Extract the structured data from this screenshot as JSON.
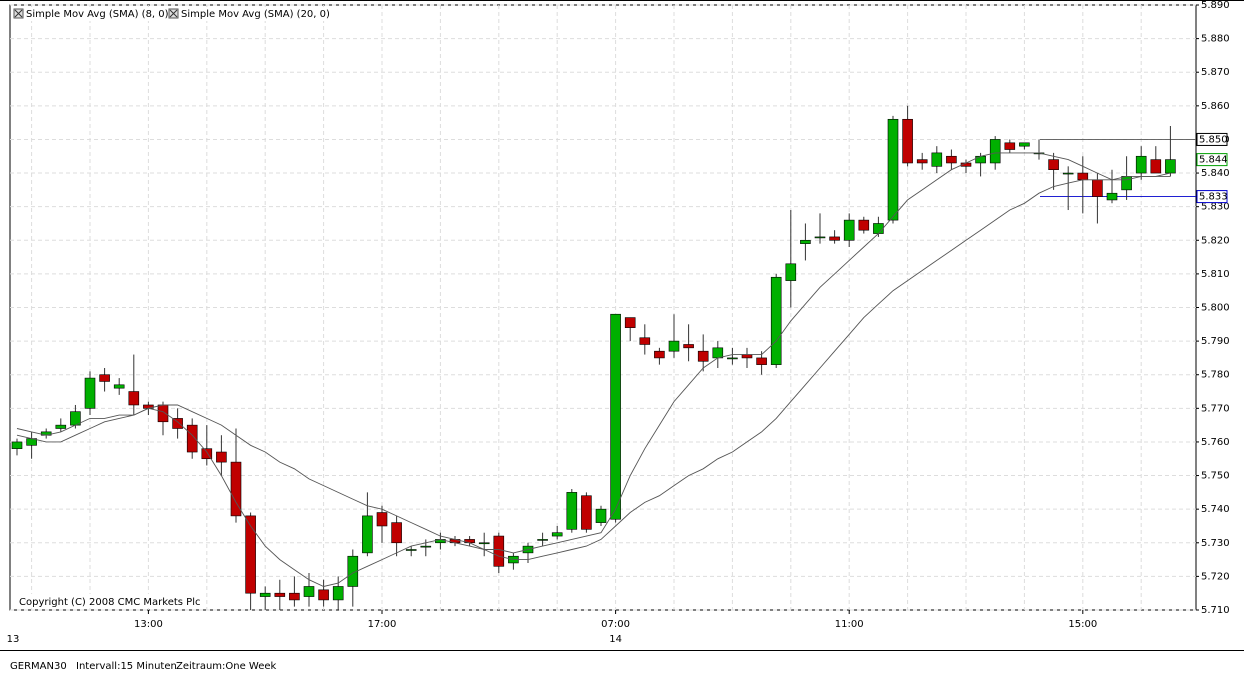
{
  "chart_data": {
    "type": "candlestick",
    "legend": [
      "Simple Mov Avg (SMA) (8, 0)",
      "Simple Mov Avg (SMA) (20, 0)"
    ],
    "copyright": "Copyright (C) 2008 CMC Markets Plc",
    "info": [
      "GERMAN30",
      "Intervall:15 Minuten",
      "Zeitraum:One Week"
    ],
    "categories": [
      null,
      null,
      null,
      null,
      null,
      null,
      null,
      null,
      null,
      "13:00",
      null,
      null,
      null,
      null,
      null,
      null,
      null,
      null,
      null,
      null,
      null,
      null,
      null,
      null,
      null,
      "17:00",
      null,
      null,
      null,
      null,
      null,
      null,
      null,
      null,
      null,
      null,
      null,
      null,
      null,
      null,
      null,
      "07:00",
      null,
      null,
      null,
      null,
      null,
      null,
      null,
      null,
      null,
      null,
      null,
      null,
      null,
      null,
      null,
      "11:00",
      null,
      null,
      null,
      null,
      null,
      null,
      null,
      null,
      null,
      null,
      null,
      null,
      null,
      null,
      null,
      "15:00",
      null,
      null,
      null,
      null,
      null,
      null
    ],
    "day_categories": [
      "13",
      null,
      null,
      null,
      null,
      null,
      null,
      null,
      null,
      null,
      null,
      null,
      null,
      null,
      null,
      null,
      null,
      null,
      null,
      null,
      null,
      null,
      null,
      null,
      null,
      null,
      null,
      null,
      null,
      null,
      null,
      null,
      null,
      null,
      null,
      null,
      null,
      null,
      null,
      null,
      null,
      "14",
      null,
      null,
      null,
      null,
      null,
      null,
      null,
      null,
      null,
      null,
      null,
      null,
      null,
      null,
      null,
      null,
      null,
      null,
      null,
      null,
      null,
      null,
      null,
      null,
      null,
      null,
      null,
      null,
      null,
      null,
      null,
      null,
      null,
      null,
      null,
      null,
      null,
      null
    ],
    "up_color": "#00b000",
    "down_color": "#c00000",
    "open": [
      5.758,
      5.759,
      5.762,
      5.764,
      5.765,
      5.77,
      5.78,
      5.776,
      5.775,
      5.771,
      5.771,
      5.767,
      5.765,
      5.758,
      5.757,
      5.754,
      5.738,
      5.714,
      5.715,
      5.715,
      5.714,
      5.716,
      5.713,
      5.717,
      5.727,
      5.739,
      5.736,
      5.728,
      5.729,
      5.73,
      5.731,
      5.731,
      5.73,
      5.732,
      5.724,
      5.727,
      5.731,
      5.732,
      5.734,
      5.744,
      5.736,
      5.737,
      5.797,
      5.791,
      5.787,
      5.787,
      5.789,
      5.787,
      5.785,
      5.785,
      5.786,
      5.785,
      5.783,
      5.808,
      5.819,
      5.821,
      5.821,
      5.82,
      5.826,
      5.822,
      5.826,
      5.856,
      5.844,
      5.842,
      5.845,
      5.843,
      5.843,
      5.843,
      5.849,
      5.848,
      5.846,
      5.844,
      5.84,
      5.84,
      5.838,
      5.832,
      5.835,
      5.84,
      5.844,
      5.84
    ],
    "high": [
      5.761,
      5.763,
      5.764,
      5.767,
      5.771,
      5.781,
      5.782,
      5.779,
      5.786,
      5.772,
      5.772,
      5.77,
      5.767,
      5.765,
      5.762,
      5.764,
      5.739,
      5.717,
      5.719,
      5.72,
      5.721,
      5.719,
      5.72,
      5.728,
      5.745,
      5.741,
      5.738,
      5.729,
      5.731,
      5.733,
      5.732,
      5.732,
      5.733,
      5.733,
      5.727,
      5.73,
      5.733,
      5.735,
      5.746,
      5.745,
      5.741,
      5.798,
      5.797,
      5.795,
      5.788,
      5.798,
      5.795,
      5.792,
      5.79,
      5.788,
      5.788,
      5.787,
      5.81,
      5.829,
      5.825,
      5.828,
      5.823,
      5.828,
      5.827,
      5.827,
      5.857,
      5.86,
      5.846,
      5.848,
      5.847,
      5.844,
      5.846,
      5.851,
      5.85,
      5.849,
      5.85,
      5.846,
      5.842,
      5.845,
      5.84,
      5.841,
      5.845,
      5.848,
      5.848,
      5.854
    ],
    "low": [
      5.756,
      5.755,
      5.761,
      5.763,
      5.764,
      5.768,
      5.775,
      5.774,
      5.768,
      5.768,
      5.762,
      5.761,
      5.755,
      5.753,
      5.75,
      5.736,
      5.71,
      5.71,
      5.71,
      5.711,
      5.711,
      5.711,
      5.71,
      5.711,
      5.726,
      5.73,
      5.726,
      5.726,
      5.726,
      5.728,
      5.729,
      5.729,
      5.726,
      5.721,
      5.722,
      5.724,
      5.729,
      5.731,
      5.733,
      5.733,
      5.735,
      5.736,
      5.79,
      5.786,
      5.783,
      5.785,
      5.784,
      5.781,
      5.782,
      5.783,
      5.782,
      5.78,
      5.782,
      5.8,
      5.814,
      5.819,
      5.819,
      5.818,
      5.822,
      5.821,
      5.825,
      5.842,
      5.841,
      5.84,
      5.841,
      5.84,
      5.839,
      5.841,
      5.846,
      5.847,
      5.844,
      5.835,
      5.829,
      5.828,
      5.825,
      5.831,
      5.832,
      5.838,
      5.84,
      5.839
    ],
    "close": [
      5.76,
      5.761,
      5.763,
      5.765,
      5.769,
      5.779,
      5.778,
      5.777,
      5.771,
      5.77,
      5.766,
      5.764,
      5.757,
      5.755,
      5.754,
      5.738,
      5.715,
      5.715,
      5.714,
      5.713,
      5.717,
      5.713,
      5.717,
      5.726,
      5.738,
      5.735,
      5.73,
      5.728,
      5.729,
      5.731,
      5.73,
      5.73,
      5.73,
      5.723,
      5.726,
      5.729,
      5.731,
      5.733,
      5.745,
      5.734,
      5.74,
      5.798,
      5.794,
      5.789,
      5.785,
      5.79,
      5.788,
      5.784,
      5.788,
      5.785,
      5.785,
      5.783,
      5.809,
      5.813,
      5.82,
      5.821,
      5.82,
      5.826,
      5.823,
      5.825,
      5.856,
      5.843,
      5.843,
      5.846,
      5.843,
      5.842,
      5.845,
      5.85,
      5.847,
      5.849,
      5.846,
      5.841,
      5.84,
      5.838,
      5.833,
      5.834,
      5.839,
      5.845,
      5.84,
      5.844
    ],
    "overlays": [
      {
        "color": "#555555",
        "values": [
          5.764,
          5.763,
          5.762,
          5.763,
          5.765,
          5.767,
          5.767,
          5.768,
          5.768,
          5.77,
          5.769,
          5.766,
          5.762,
          5.757,
          5.75,
          5.742,
          5.735,
          5.729,
          5.725,
          5.722,
          5.719,
          5.717,
          5.718,
          5.721,
          5.723,
          5.725,
          5.727,
          5.729,
          5.73,
          5.731,
          5.73,
          5.729,
          5.728,
          5.728,
          5.727,
          5.728,
          5.729,
          5.73,
          5.731,
          5.732,
          5.733,
          5.74,
          5.75,
          5.758,
          5.765,
          5.772,
          5.777,
          5.782,
          5.785,
          5.786,
          5.786,
          5.786,
          5.79,
          5.796,
          5.801,
          5.806,
          5.81,
          5.814,
          5.818,
          5.822,
          5.827,
          5.832,
          5.835,
          5.838,
          5.841,
          5.843,
          5.845,
          5.846,
          5.846,
          5.846,
          5.846,
          5.845,
          5.844,
          5.842,
          5.84,
          5.838,
          5.838,
          5.839,
          5.839,
          5.84
        ]
      },
      {
        "color": "#555555",
        "values": [
          5.762,
          5.761,
          5.76,
          5.76,
          5.762,
          5.764,
          5.766,
          5.767,
          5.768,
          5.77,
          5.771,
          5.771,
          5.769,
          5.767,
          5.765,
          5.762,
          5.759,
          5.757,
          5.754,
          5.752,
          5.749,
          5.747,
          5.745,
          5.743,
          5.741,
          5.74,
          5.738,
          5.736,
          5.734,
          5.732,
          5.731,
          5.73,
          5.728,
          5.726,
          5.725,
          5.725,
          5.726,
          5.727,
          5.728,
          5.729,
          5.731,
          5.735,
          5.739,
          5.742,
          5.744,
          5.747,
          5.75,
          5.752,
          5.755,
          5.757,
          5.76,
          5.763,
          5.767,
          5.772,
          5.777,
          5.782,
          5.787,
          5.792,
          5.797,
          5.801,
          5.805,
          5.808,
          5.811,
          5.814,
          5.817,
          5.82,
          5.823,
          5.826,
          5.829,
          5.831,
          5.834,
          5.836,
          5.837,
          5.838,
          5.838,
          5.838,
          5.839,
          5.839,
          5.839,
          5.839
        ]
      }
    ],
    "price_markers": [
      {
        "value": 5.85,
        "label": "5.850",
        "color": "#000000",
        "line": true
      },
      {
        "value": 5.844,
        "label": "5.844",
        "color": "#00a000",
        "line": false
      },
      {
        "value": 5.833,
        "label": "5.833",
        "color": "#0000cc",
        "line": true
      }
    ],
    "ylim": [
      5.71,
      5.89
    ],
    "yticks": [
      {
        "value": 5.71,
        "label": "5.710"
      },
      {
        "value": 5.72,
        "label": "5.720"
      },
      {
        "value": 5.73,
        "label": "5.730"
      },
      {
        "value": 5.74,
        "label": "5.740"
      },
      {
        "value": 5.75,
        "label": "5.750"
      },
      {
        "value": 5.76,
        "label": "5.760"
      },
      {
        "value": 5.77,
        "label": "5.770"
      },
      {
        "value": 5.78,
        "label": "5.780"
      },
      {
        "value": 5.79,
        "label": "5.790"
      },
      {
        "value": 5.8,
        "label": "5.800"
      },
      {
        "value": 5.81,
        "label": "5.810"
      },
      {
        "value": 5.82,
        "label": "5.820"
      },
      {
        "value": 5.83,
        "label": "5.830"
      },
      {
        "value": 5.84,
        "label": "5.840"
      },
      {
        "value": 5.85,
        "label": "5.850"
      },
      {
        "value": 5.86,
        "label": "5.860"
      },
      {
        "value": 5.87,
        "label": "5.870"
      },
      {
        "value": 5.88,
        "label": "5.880"
      },
      {
        "value": 5.89,
        "label": "5.890"
      }
    ],
    "grid": true
  }
}
